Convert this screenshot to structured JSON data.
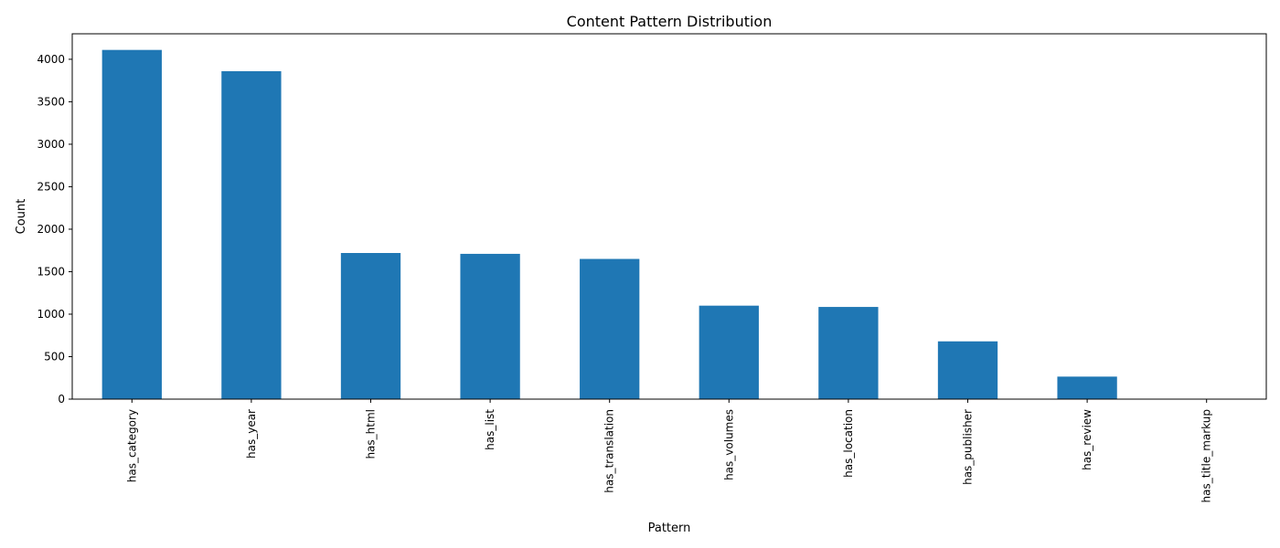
{
  "chart_data": {
    "type": "bar",
    "title": "Content Pattern Distribution",
    "xlabel": "Pattern",
    "ylabel": "Count",
    "categories": [
      "has_category",
      "has_year",
      "has_html",
      "has_list",
      "has_translation",
      "has_volumes",
      "has_location",
      "has_publisher",
      "has_review",
      "has_title_markup"
    ],
    "values": [
      4110,
      3860,
      1720,
      1710,
      1650,
      1100,
      1085,
      680,
      265,
      0
    ],
    "ylim": [
      0,
      4300
    ],
    "yticks": [
      0,
      500,
      1000,
      1500,
      2000,
      2500,
      3000,
      3500,
      4000
    ],
    "grid": false,
    "legend": "none"
  },
  "colors": {
    "bar": "#1f77b4",
    "axis": "#000000",
    "background": "#ffffff"
  }
}
